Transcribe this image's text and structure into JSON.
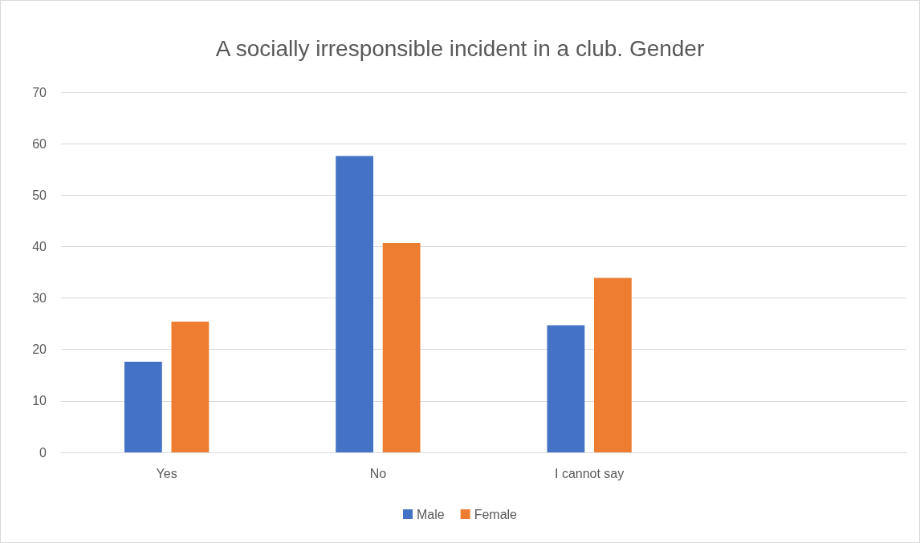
{
  "chart_data": {
    "type": "bar",
    "title": "A socially irresponsible incident in a club. Gender",
    "categories": [
      "Yes",
      "No",
      "I cannot say",
      null
    ],
    "series": [
      {
        "name": "Male",
        "color": "#4472c4",
        "values": [
          17.6,
          57.6,
          24.7,
          null
        ]
      },
      {
        "name": "Female",
        "color": "#ed7d31",
        "values": [
          25.4,
          40.7,
          33.9,
          null
        ]
      }
    ],
    "ylim": [
      0,
      70
    ],
    "yticks": [
      0,
      10,
      20,
      30,
      40,
      50,
      60,
      70
    ],
    "grid": "y",
    "legend": "bottom"
  }
}
